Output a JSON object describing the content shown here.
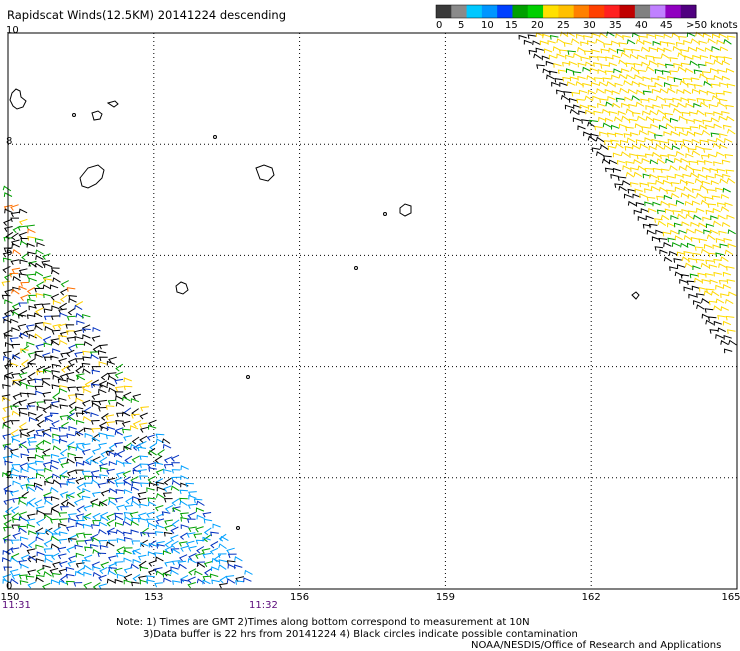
{
  "title": "Rapidscat Winds(12.5KM) 20141224 descending",
  "legend": {
    "colors": [
      "#3a3a3a",
      "#8a8a8a",
      "#00c8ff",
      "#0096ff",
      "#0040ff",
      "#00a000",
      "#00d000",
      "#ffe000",
      "#ffc000",
      "#ff8000",
      "#ff4000",
      "#ff2020",
      "#c00000",
      "#808080",
      "#c080ff",
      "#9000c0",
      "#500080"
    ],
    "labels": [
      "0",
      "5",
      "10",
      "15",
      "20",
      "25",
      "30",
      "35",
      "40",
      "45",
      ">50 knots"
    ]
  },
  "axes": {
    "y_labels": [
      "10",
      "8",
      "6",
      "4",
      "2",
      "0"
    ],
    "x_labels": [
      "150",
      "153",
      "156",
      "159",
      "162",
      "165"
    ]
  },
  "times": {
    "left": "11:31",
    "right": "11:32"
  },
  "notes": {
    "line1": "Note: 1) Times are GMT 2)Times along bottom correspond to measurement at 10N",
    "line2": "3)Data buffer is 22 hrs from 20141224 4) Black circles indicate possible contamination",
    "line3": "NOAA/NESDIS/Office of Research and Applications"
  },
  "map_data": {
    "lon_range": [
      150,
      165
    ],
    "lat_range": [
      0,
      10
    ],
    "swaths": [
      {
        "name": "west",
        "colors": [
          "#000000",
          "#0030c0",
          "#00a0ff",
          "#00a000",
          "#ffd000",
          "#ff7000",
          "#000000"
        ]
      },
      {
        "name": "east",
        "colors": [
          "#ffd800",
          "#ffe000",
          "#00a000",
          "#000000"
        ]
      }
    ]
  }
}
